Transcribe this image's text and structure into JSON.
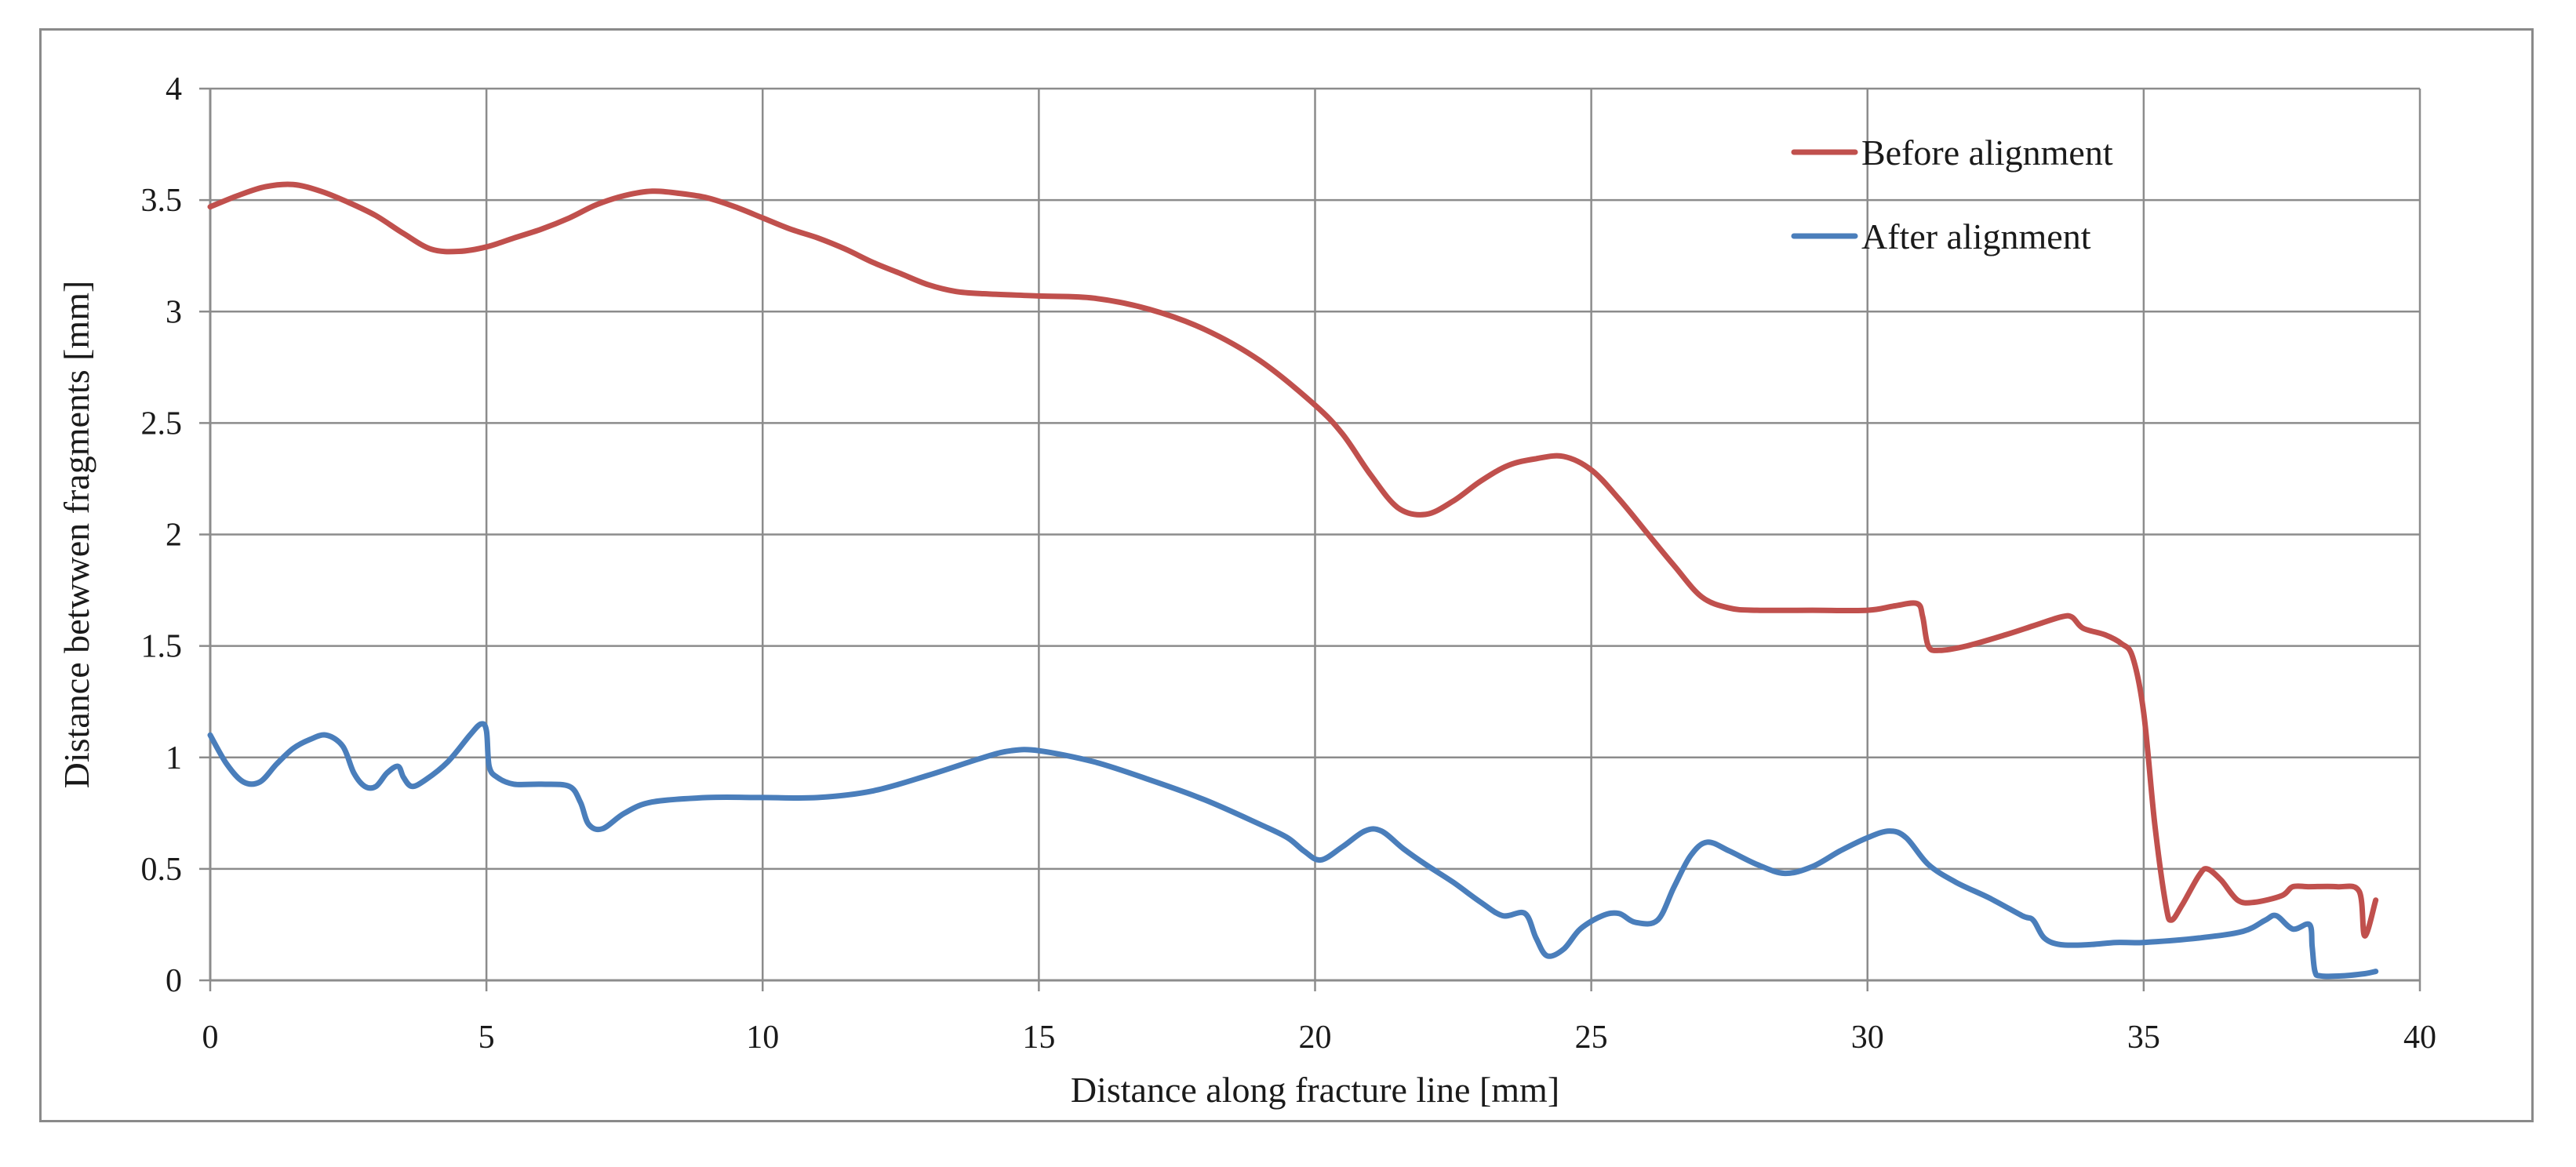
{
  "chart_data": {
    "type": "line",
    "title": "",
    "xlabel": "Distance along fracture line [mm]",
    "ylabel": "Distance betwwen fragments [mm]",
    "xlim": [
      0,
      40
    ],
    "ylim": [
      0,
      4
    ],
    "x_ticks": [
      "0",
      "5",
      "10",
      "15",
      "20",
      "25",
      "30",
      "35",
      "40"
    ],
    "y_ticks": [
      "0",
      "0.5",
      "1",
      "1.5",
      "2",
      "2.5",
      "3",
      "3.5",
      "4"
    ],
    "grid": true,
    "legend_position": "top-right",
    "series": [
      {
        "name": "Before alignment",
        "color": "#c0504d",
        "points": [
          [
            0,
            3.47
          ],
          [
            0.5,
            3.52
          ],
          [
            1.0,
            3.56
          ],
          [
            1.5,
            3.57
          ],
          [
            2.0,
            3.54
          ],
          [
            2.5,
            3.49
          ],
          [
            3.0,
            3.43
          ],
          [
            3.5,
            3.35
          ],
          [
            4.0,
            3.28
          ],
          [
            4.5,
            3.27
          ],
          [
            5.0,
            3.29
          ],
          [
            5.5,
            3.33
          ],
          [
            6.0,
            3.37
          ],
          [
            6.5,
            3.42
          ],
          [
            7.0,
            3.48
          ],
          [
            7.5,
            3.52
          ],
          [
            8.0,
            3.54
          ],
          [
            8.5,
            3.53
          ],
          [
            9.0,
            3.51
          ],
          [
            9.5,
            3.47
          ],
          [
            10.0,
            3.42
          ],
          [
            10.5,
            3.37
          ],
          [
            11.0,
            3.33
          ],
          [
            11.5,
            3.28
          ],
          [
            12.0,
            3.22
          ],
          [
            12.5,
            3.17
          ],
          [
            13.0,
            3.12
          ],
          [
            13.5,
            3.09
          ],
          [
            14.0,
            3.08
          ],
          [
            15.0,
            3.07
          ],
          [
            16.0,
            3.06
          ],
          [
            17.0,
            3.01
          ],
          [
            18.0,
            2.92
          ],
          [
            19.0,
            2.78
          ],
          [
            20.0,
            2.58
          ],
          [
            20.5,
            2.45
          ],
          [
            21.0,
            2.27
          ],
          [
            21.5,
            2.12
          ],
          [
            22.0,
            2.09
          ],
          [
            22.5,
            2.15
          ],
          [
            23.0,
            2.24
          ],
          [
            23.5,
            2.31
          ],
          [
            24.0,
            2.34
          ],
          [
            24.5,
            2.35
          ],
          [
            25.0,
            2.29
          ],
          [
            25.5,
            2.16
          ],
          [
            26.0,
            2.01
          ],
          [
            26.5,
            1.86
          ],
          [
            27.0,
            1.72
          ],
          [
            27.5,
            1.67
          ],
          [
            28.0,
            1.66
          ],
          [
            29.0,
            1.66
          ],
          [
            30.0,
            1.66
          ],
          [
            30.5,
            1.68
          ],
          [
            30.9,
            1.69
          ],
          [
            31.0,
            1.63
          ],
          [
            31.1,
            1.5
          ],
          [
            31.3,
            1.48
          ],
          [
            31.8,
            1.5
          ],
          [
            32.5,
            1.55
          ],
          [
            33.0,
            1.59
          ],
          [
            33.5,
            1.63
          ],
          [
            33.7,
            1.63
          ],
          [
            33.9,
            1.58
          ],
          [
            34.3,
            1.55
          ],
          [
            34.6,
            1.51
          ],
          [
            34.8,
            1.45
          ],
          [
            35.0,
            1.2
          ],
          [
            35.2,
            0.7
          ],
          [
            35.4,
            0.34
          ],
          [
            35.5,
            0.27
          ],
          [
            35.7,
            0.34
          ],
          [
            36.0,
            0.47
          ],
          [
            36.15,
            0.5
          ],
          [
            36.4,
            0.45
          ],
          [
            36.7,
            0.36
          ],
          [
            37.0,
            0.35
          ],
          [
            37.5,
            0.38
          ],
          [
            37.7,
            0.42
          ],
          [
            38.0,
            0.42
          ],
          [
            38.5,
            0.42
          ],
          [
            38.9,
            0.4
          ],
          [
            39.0,
            0.2
          ],
          [
            39.2,
            0.36
          ]
        ]
      },
      {
        "name": "After alignment",
        "color": "#4a7ebb",
        "points": [
          [
            0,
            1.1
          ],
          [
            0.3,
            0.97
          ],
          [
            0.6,
            0.89
          ],
          [
            0.9,
            0.89
          ],
          [
            1.2,
            0.97
          ],
          [
            1.5,
            1.04
          ],
          [
            1.8,
            1.08
          ],
          [
            2.1,
            1.1
          ],
          [
            2.4,
            1.05
          ],
          [
            2.6,
            0.93
          ],
          [
            2.8,
            0.87
          ],
          [
            3.0,
            0.87
          ],
          [
            3.2,
            0.93
          ],
          [
            3.4,
            0.96
          ],
          [
            3.5,
            0.91
          ],
          [
            3.65,
            0.87
          ],
          [
            3.9,
            0.9
          ],
          [
            4.3,
            0.98
          ],
          [
            4.7,
            1.1
          ],
          [
            4.9,
            1.15
          ],
          [
            5.0,
            1.12
          ],
          [
            5.05,
            0.96
          ],
          [
            5.2,
            0.91
          ],
          [
            5.5,
            0.88
          ],
          [
            6.0,
            0.88
          ],
          [
            6.5,
            0.87
          ],
          [
            6.7,
            0.8
          ],
          [
            6.85,
            0.7
          ],
          [
            7.1,
            0.68
          ],
          [
            7.5,
            0.75
          ],
          [
            8.0,
            0.8
          ],
          [
            9.0,
            0.82
          ],
          [
            10.0,
            0.82
          ],
          [
            11.0,
            0.82
          ],
          [
            12.0,
            0.85
          ],
          [
            13.0,
            0.92
          ],
          [
            14.0,
            1.0
          ],
          [
            14.5,
            1.03
          ],
          [
            15.0,
            1.03
          ],
          [
            16.0,
            0.98
          ],
          [
            17.0,
            0.9
          ],
          [
            18.0,
            0.81
          ],
          [
            19.0,
            0.7
          ],
          [
            19.5,
            0.64
          ],
          [
            19.8,
            0.58
          ],
          [
            20.1,
            0.54
          ],
          [
            20.5,
            0.6
          ],
          [
            20.9,
            0.67
          ],
          [
            21.2,
            0.67
          ],
          [
            21.6,
            0.59
          ],
          [
            22.0,
            0.52
          ],
          [
            22.5,
            0.44
          ],
          [
            23.0,
            0.35
          ],
          [
            23.4,
            0.29
          ],
          [
            23.8,
            0.3
          ],
          [
            24.0,
            0.19
          ],
          [
            24.2,
            0.11
          ],
          [
            24.5,
            0.14
          ],
          [
            24.8,
            0.23
          ],
          [
            25.2,
            0.29
          ],
          [
            25.5,
            0.3
          ],
          [
            25.8,
            0.26
          ],
          [
            26.2,
            0.27
          ],
          [
            26.5,
            0.42
          ],
          [
            26.8,
            0.56
          ],
          [
            27.1,
            0.62
          ],
          [
            27.5,
            0.58
          ],
          [
            28.0,
            0.52
          ],
          [
            28.5,
            0.48
          ],
          [
            29.0,
            0.51
          ],
          [
            29.5,
            0.58
          ],
          [
            30.0,
            0.64
          ],
          [
            30.4,
            0.67
          ],
          [
            30.7,
            0.64
          ],
          [
            31.1,
            0.52
          ],
          [
            31.6,
            0.44
          ],
          [
            32.2,
            0.37
          ],
          [
            32.8,
            0.29
          ],
          [
            33.0,
            0.27
          ],
          [
            33.2,
            0.19
          ],
          [
            33.5,
            0.16
          ],
          [
            34.0,
            0.16
          ],
          [
            34.5,
            0.17
          ],
          [
            35.0,
            0.17
          ],
          [
            36.0,
            0.19
          ],
          [
            36.8,
            0.22
          ],
          [
            37.2,
            0.27
          ],
          [
            37.4,
            0.29
          ],
          [
            37.7,
            0.23
          ],
          [
            38.0,
            0.25
          ],
          [
            38.05,
            0.15
          ],
          [
            38.1,
            0.04
          ],
          [
            38.2,
            0.02
          ],
          [
            38.6,
            0.02
          ],
          [
            39.0,
            0.03
          ],
          [
            39.2,
            0.04
          ]
        ]
      }
    ]
  }
}
